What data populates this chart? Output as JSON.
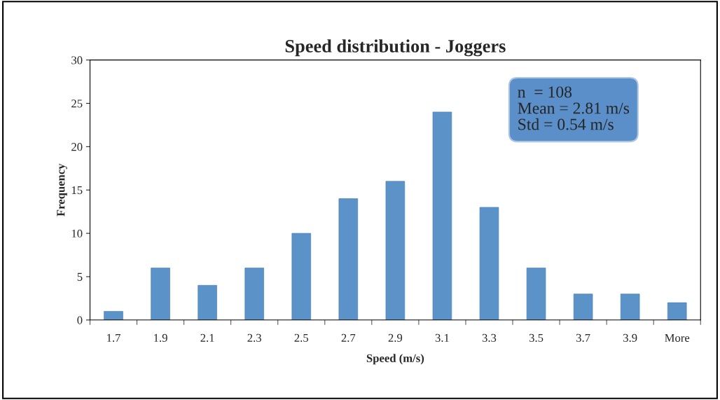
{
  "chart_data": {
    "type": "bar",
    "title": "Speed distribution - Joggers",
    "xlabel": "Speed (m/s)",
    "ylabel": "Frequency",
    "categories": [
      "1.7",
      "1.9",
      "2.1",
      "2.3",
      "2.5",
      "2.7",
      "2.9",
      "3.1",
      "3.3",
      "3.5",
      "3.7",
      "3.9",
      "More"
    ],
    "series": [
      {
        "color": "#5b93c8",
        "values": [
          1,
          6,
          4,
          6,
          10,
          14,
          16,
          24,
          13,
          6,
          3,
          3,
          2
        ]
      }
    ],
    "ylim": [
      0,
      30
    ],
    "yticks": [
      0,
      5,
      10,
      15,
      20,
      25,
      30
    ],
    "grid": false,
    "legend": false,
    "annotations": [
      "n  = 108\nMean = 2.81 m/s\nStd = 0.54 m/s"
    ]
  }
}
